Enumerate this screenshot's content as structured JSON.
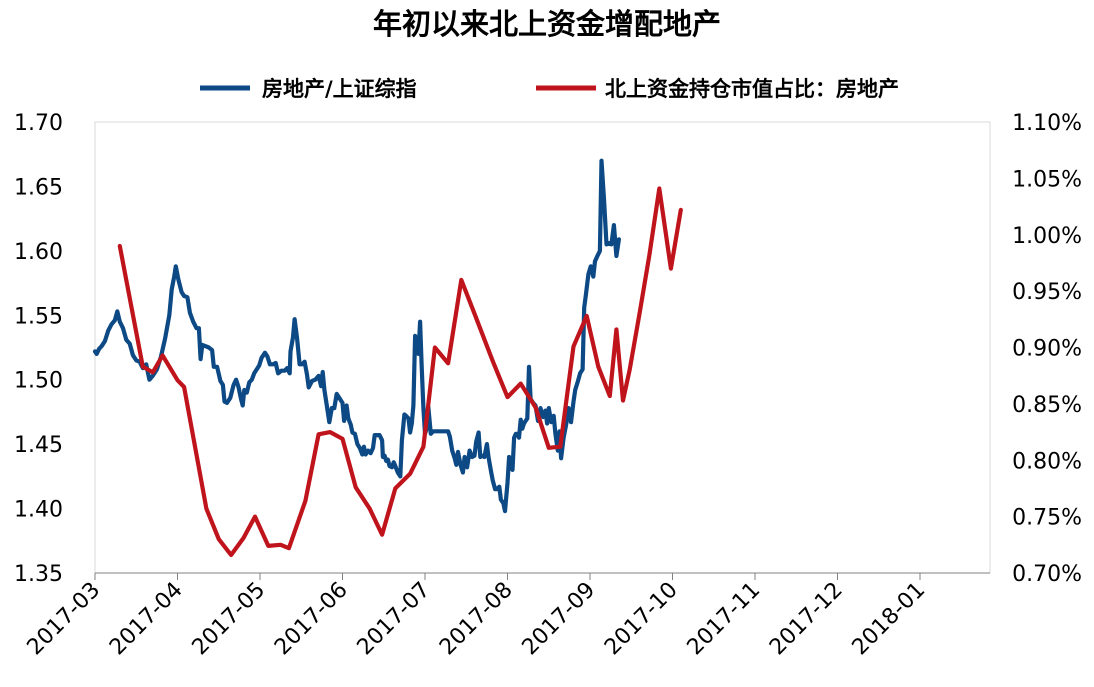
{
  "chart_data": {
    "type": "line",
    "title": "年初以来北上资金增配地产",
    "legend_position": "top",
    "grid": false,
    "x_categories": [
      "2017-03",
      "2017-04",
      "2017-05",
      "2017-06",
      "2017-07",
      "2017-08",
      "2017-09",
      "2017-10",
      "2017-11",
      "2017-12",
      "2018-01"
    ],
    "y_left": {
      "ticks": [
        "1.35",
        "1.40",
        "1.45",
        "1.50",
        "1.55",
        "1.60",
        "1.65",
        "1.70"
      ],
      "range": [
        1.35,
        1.7
      ]
    },
    "y_right": {
      "ticks": [
        "0.70%",
        "0.75%",
        "0.80%",
        "0.85%",
        "0.90%",
        "0.95%",
        "1.00%",
        "1.05%",
        "1.10%"
      ],
      "range": [
        0.7,
        1.1
      ]
    },
    "series": [
      {
        "name": "房地产/上证综指",
        "color": "#0d4a85",
        "axis": "left",
        "points": [
          [
            0.0,
            1.522
          ],
          [
            0.02,
            1.52
          ],
          [
            0.05,
            1.524
          ],
          [
            0.08,
            1.526
          ],
          [
            0.12,
            1.53
          ],
          [
            0.16,
            1.538
          ],
          [
            0.2,
            1.543
          ],
          [
            0.24,
            1.546
          ],
          [
            0.27,
            1.553
          ],
          [
            0.3,
            1.545
          ],
          [
            0.34,
            1.54
          ],
          [
            0.38,
            1.531
          ],
          [
            0.42,
            1.528
          ],
          [
            0.46,
            1.519
          ],
          [
            0.5,
            1.515
          ],
          [
            0.54,
            1.514
          ],
          [
            0.58,
            1.509
          ],
          [
            0.62,
            1.512
          ],
          [
            0.66,
            1.5
          ],
          [
            0.7,
            1.503
          ],
          [
            0.75,
            1.508
          ],
          [
            0.8,
            1.518
          ],
          [
            0.85,
            1.532
          ],
          [
            0.9,
            1.55
          ],
          [
            0.93,
            1.57
          ],
          [
            0.96,
            1.58
          ],
          [
            0.98,
            1.588
          ],
          [
            1.01,
            1.578
          ],
          [
            1.05,
            1.568
          ],
          [
            1.08,
            1.565
          ],
          [
            1.12,
            1.564
          ],
          [
            1.15,
            1.552
          ],
          [
            1.19,
            1.545
          ],
          [
            1.23,
            1.54
          ],
          [
            1.26,
            1.54
          ],
          [
            1.28,
            1.516
          ],
          [
            1.3,
            1.527
          ],
          [
            1.34,
            1.526
          ],
          [
            1.38,
            1.525
          ],
          [
            1.42,
            1.523
          ],
          [
            1.44,
            1.51
          ],
          [
            1.48,
            1.51
          ],
          [
            1.52,
            1.499
          ],
          [
            1.55,
            1.496
          ],
          [
            1.57,
            1.483
          ],
          [
            1.6,
            1.482
          ],
          [
            1.64,
            1.486
          ],
          [
            1.68,
            1.496
          ],
          [
            1.71,
            1.5
          ],
          [
            1.74,
            1.494
          ],
          [
            1.77,
            1.485
          ],
          [
            1.79,
            1.48
          ],
          [
            1.81,
            1.492
          ],
          [
            1.84,
            1.49
          ],
          [
            1.87,
            1.498
          ],
          [
            1.9,
            1.5
          ],
          [
            1.93,
            1.505
          ],
          [
            1.96,
            1.508
          ],
          [
            1.99,
            1.511
          ],
          [
            2.02,
            1.517
          ],
          [
            2.06,
            1.521
          ],
          [
            2.09,
            1.518
          ],
          [
            2.12,
            1.512
          ],
          [
            2.16,
            1.512
          ],
          [
            2.19,
            1.513
          ],
          [
            2.22,
            1.505
          ],
          [
            2.26,
            1.507
          ],
          [
            2.3,
            1.507
          ],
          [
            2.33,
            1.509
          ],
          [
            2.36,
            1.505
          ],
          [
            2.37,
            1.522
          ],
          [
            2.4,
            1.533
          ],
          [
            2.42,
            1.547
          ],
          [
            2.45,
            1.532
          ],
          [
            2.48,
            1.512
          ],
          [
            2.51,
            1.512
          ],
          [
            2.54,
            1.514
          ],
          [
            2.57,
            1.504
          ],
          [
            2.59,
            1.494
          ],
          [
            2.63,
            1.499
          ],
          [
            2.67,
            1.5
          ],
          [
            2.71,
            1.503
          ],
          [
            2.74,
            1.495
          ],
          [
            2.76,
            1.506
          ],
          [
            2.78,
            1.492
          ],
          [
            2.81,
            1.48
          ],
          [
            2.84,
            1.467
          ],
          [
            2.87,
            1.478
          ],
          [
            2.9,
            1.478
          ],
          [
            2.93,
            1.489
          ],
          [
            2.97,
            1.485
          ],
          [
            3.0,
            1.482
          ],
          [
            3.02,
            1.468
          ],
          [
            3.05,
            1.48
          ],
          [
            3.07,
            1.47
          ],
          [
            3.1,
            1.465
          ],
          [
            3.12,
            1.459
          ],
          [
            3.15,
            1.458
          ],
          [
            3.18,
            1.45
          ],
          [
            3.21,
            1.447
          ],
          [
            3.24,
            1.442
          ],
          [
            3.26,
            1.448
          ],
          [
            3.28,
            1.442
          ],
          [
            3.31,
            1.445
          ],
          [
            3.34,
            1.443
          ],
          [
            3.37,
            1.447
          ],
          [
            3.39,
            1.457
          ],
          [
            3.42,
            1.457
          ],
          [
            3.45,
            1.457
          ],
          [
            3.48,
            1.453
          ],
          [
            3.49,
            1.44
          ],
          [
            3.51,
            1.441
          ],
          [
            3.53,
            1.437
          ],
          [
            3.55,
            1.438
          ],
          [
            3.57,
            1.433
          ],
          [
            3.6,
            1.432
          ],
          [
            3.62,
            1.436
          ],
          [
            3.64,
            1.433
          ],
          [
            3.67,
            1.428
          ],
          [
            3.7,
            1.425
          ],
          [
            3.72,
            1.453
          ],
          [
            3.75,
            1.473
          ],
          [
            3.77,
            1.472
          ],
          [
            3.8,
            1.47
          ],
          [
            3.82,
            1.459
          ],
          [
            3.84,
            1.466
          ],
          [
            3.86,
            1.48
          ],
          [
            3.88,
            1.534
          ],
          [
            3.9,
            1.531
          ],
          [
            3.92,
            1.52
          ],
          [
            3.94,
            1.545
          ],
          [
            3.96,
            1.51
          ],
          [
            3.98,
            1.478
          ],
          [
            4.0,
            1.458
          ],
          [
            4.02,
            1.462
          ],
          [
            4.04,
            1.479
          ],
          [
            4.07,
            1.458
          ],
          [
            4.1,
            1.46
          ],
          [
            4.13,
            1.46
          ],
          [
            4.16,
            1.46
          ],
          [
            4.19,
            1.46
          ],
          [
            4.22,
            1.46
          ],
          [
            4.25,
            1.46
          ],
          [
            4.28,
            1.46
          ],
          [
            4.3,
            1.456
          ],
          [
            4.33,
            1.445
          ],
          [
            4.36,
            1.439
          ],
          [
            4.38,
            1.434
          ],
          [
            4.4,
            1.444
          ],
          [
            4.43,
            1.434
          ],
          [
            4.46,
            1.428
          ],
          [
            4.48,
            1.44
          ],
          [
            4.51,
            1.432
          ],
          [
            4.54,
            1.445
          ],
          [
            4.57,
            1.44
          ],
          [
            4.6,
            1.441
          ],
          [
            4.62,
            1.452
          ],
          [
            4.65,
            1.459
          ],
          [
            4.67,
            1.44
          ],
          [
            4.7,
            1.441
          ],
          [
            4.72,
            1.44
          ],
          [
            4.75,
            1.45
          ],
          [
            4.77,
            1.44
          ],
          [
            4.8,
            1.429
          ],
          [
            4.82,
            1.422
          ],
          [
            4.85,
            1.415
          ],
          [
            4.87,
            1.415
          ],
          [
            4.9,
            1.417
          ],
          [
            4.92,
            1.407
          ],
          [
            4.95,
            1.404
          ],
          [
            4.97,
            1.398
          ],
          [
            5.0,
            1.42
          ],
          [
            5.02,
            1.44
          ],
          [
            5.04,
            1.432
          ],
          [
            5.06,
            1.43
          ],
          [
            5.08,
            1.455
          ],
          [
            5.1,
            1.458
          ],
          [
            5.12,
            1.458
          ],
          [
            5.14,
            1.455
          ],
          [
            5.16,
            1.469
          ],
          [
            5.18,
            1.462
          ],
          [
            5.2,
            1.466
          ],
          [
            5.22,
            1.468
          ],
          [
            5.24,
            1.47
          ],
          [
            5.26,
            1.51
          ],
          [
            5.28,
            1.485
          ],
          [
            5.31,
            1.482
          ],
          [
            5.34,
            1.48
          ],
          [
            5.37,
            1.468
          ],
          [
            5.4,
            1.478
          ],
          [
            5.43,
            1.471
          ],
          [
            5.46,
            1.476
          ],
          [
            5.48,
            1.466
          ],
          [
            5.5,
            1.478
          ],
          [
            5.53,
            1.467
          ],
          [
            5.56,
            1.472
          ],
          [
            5.58,
            1.458
          ],
          [
            5.61,
            1.445
          ],
          [
            5.63,
            1.46
          ],
          [
            5.65,
            1.439
          ],
          [
            5.68,
            1.455
          ],
          [
            5.71,
            1.465
          ],
          [
            5.74,
            1.478
          ],
          [
            5.77,
            1.467
          ],
          [
            5.8,
            1.483
          ],
          [
            5.82,
            1.492
          ],
          [
            5.85,
            1.498
          ],
          [
            5.88,
            1.505
          ],
          [
            5.91,
            1.508
          ],
          [
            5.93,
            1.556
          ],
          [
            5.95,
            1.566
          ],
          [
            5.98,
            1.582
          ],
          [
            6.01,
            1.588
          ],
          [
            6.04,
            1.58
          ],
          [
            6.06,
            1.592
          ],
          [
            6.09,
            1.596
          ],
          [
            6.12,
            1.6
          ],
          [
            6.14,
            1.67
          ],
          [
            6.17,
            1.64
          ],
          [
            6.2,
            1.605
          ],
          [
            6.23,
            1.606
          ],
          [
            6.26,
            1.605
          ],
          [
            6.29,
            1.62
          ],
          [
            6.32,
            1.596
          ],
          [
            6.35,
            1.609
          ]
        ]
      },
      {
        "name": "北上资金持仓市值占比：房地产",
        "color": "#c0141c",
        "axis": "right",
        "points": [
          [
            0.3,
            0.99
          ],
          [
            0.58,
            0.883
          ],
          [
            0.7,
            0.878
          ],
          [
            0.82,
            0.893
          ],
          [
            1.0,
            0.871
          ],
          [
            1.08,
            0.865
          ],
          [
            1.35,
            0.757
          ],
          [
            1.5,
            0.73
          ],
          [
            1.65,
            0.716
          ],
          [
            1.8,
            0.731
          ],
          [
            1.94,
            0.75
          ],
          [
            2.1,
            0.724
          ],
          [
            2.25,
            0.725
          ],
          [
            2.35,
            0.722
          ],
          [
            2.55,
            0.764
          ],
          [
            2.71,
            0.823
          ],
          [
            2.85,
            0.825
          ],
          [
            3.0,
            0.819
          ],
          [
            3.16,
            0.776
          ],
          [
            3.33,
            0.757
          ],
          [
            3.48,
            0.734
          ],
          [
            3.64,
            0.775
          ],
          [
            3.82,
            0.788
          ],
          [
            3.98,
            0.812
          ],
          [
            4.12,
            0.9
          ],
          [
            4.28,
            0.886
          ],
          [
            4.44,
            0.96
          ],
          [
            4.6,
            0.93
          ],
          [
            4.82,
            0.888
          ],
          [
            5.0,
            0.856
          ],
          [
            5.16,
            0.868
          ],
          [
            5.34,
            0.847
          ],
          [
            5.5,
            0.811
          ],
          [
            5.64,
            0.812
          ],
          [
            5.8,
            0.901
          ],
          [
            5.96,
            0.928
          ],
          [
            6.1,
            0.883
          ],
          [
            6.24,
            0.857
          ],
          [
            6.32,
            0.916
          ],
          [
            6.4,
            0.853
          ],
          [
            6.48,
            0.88
          ],
          [
            6.6,
            0.93
          ],
          [
            6.72,
            0.982
          ],
          [
            6.84,
            1.041
          ],
          [
            6.98,
            0.97
          ],
          [
            7.1,
            1.022
          ]
        ]
      }
    ]
  }
}
